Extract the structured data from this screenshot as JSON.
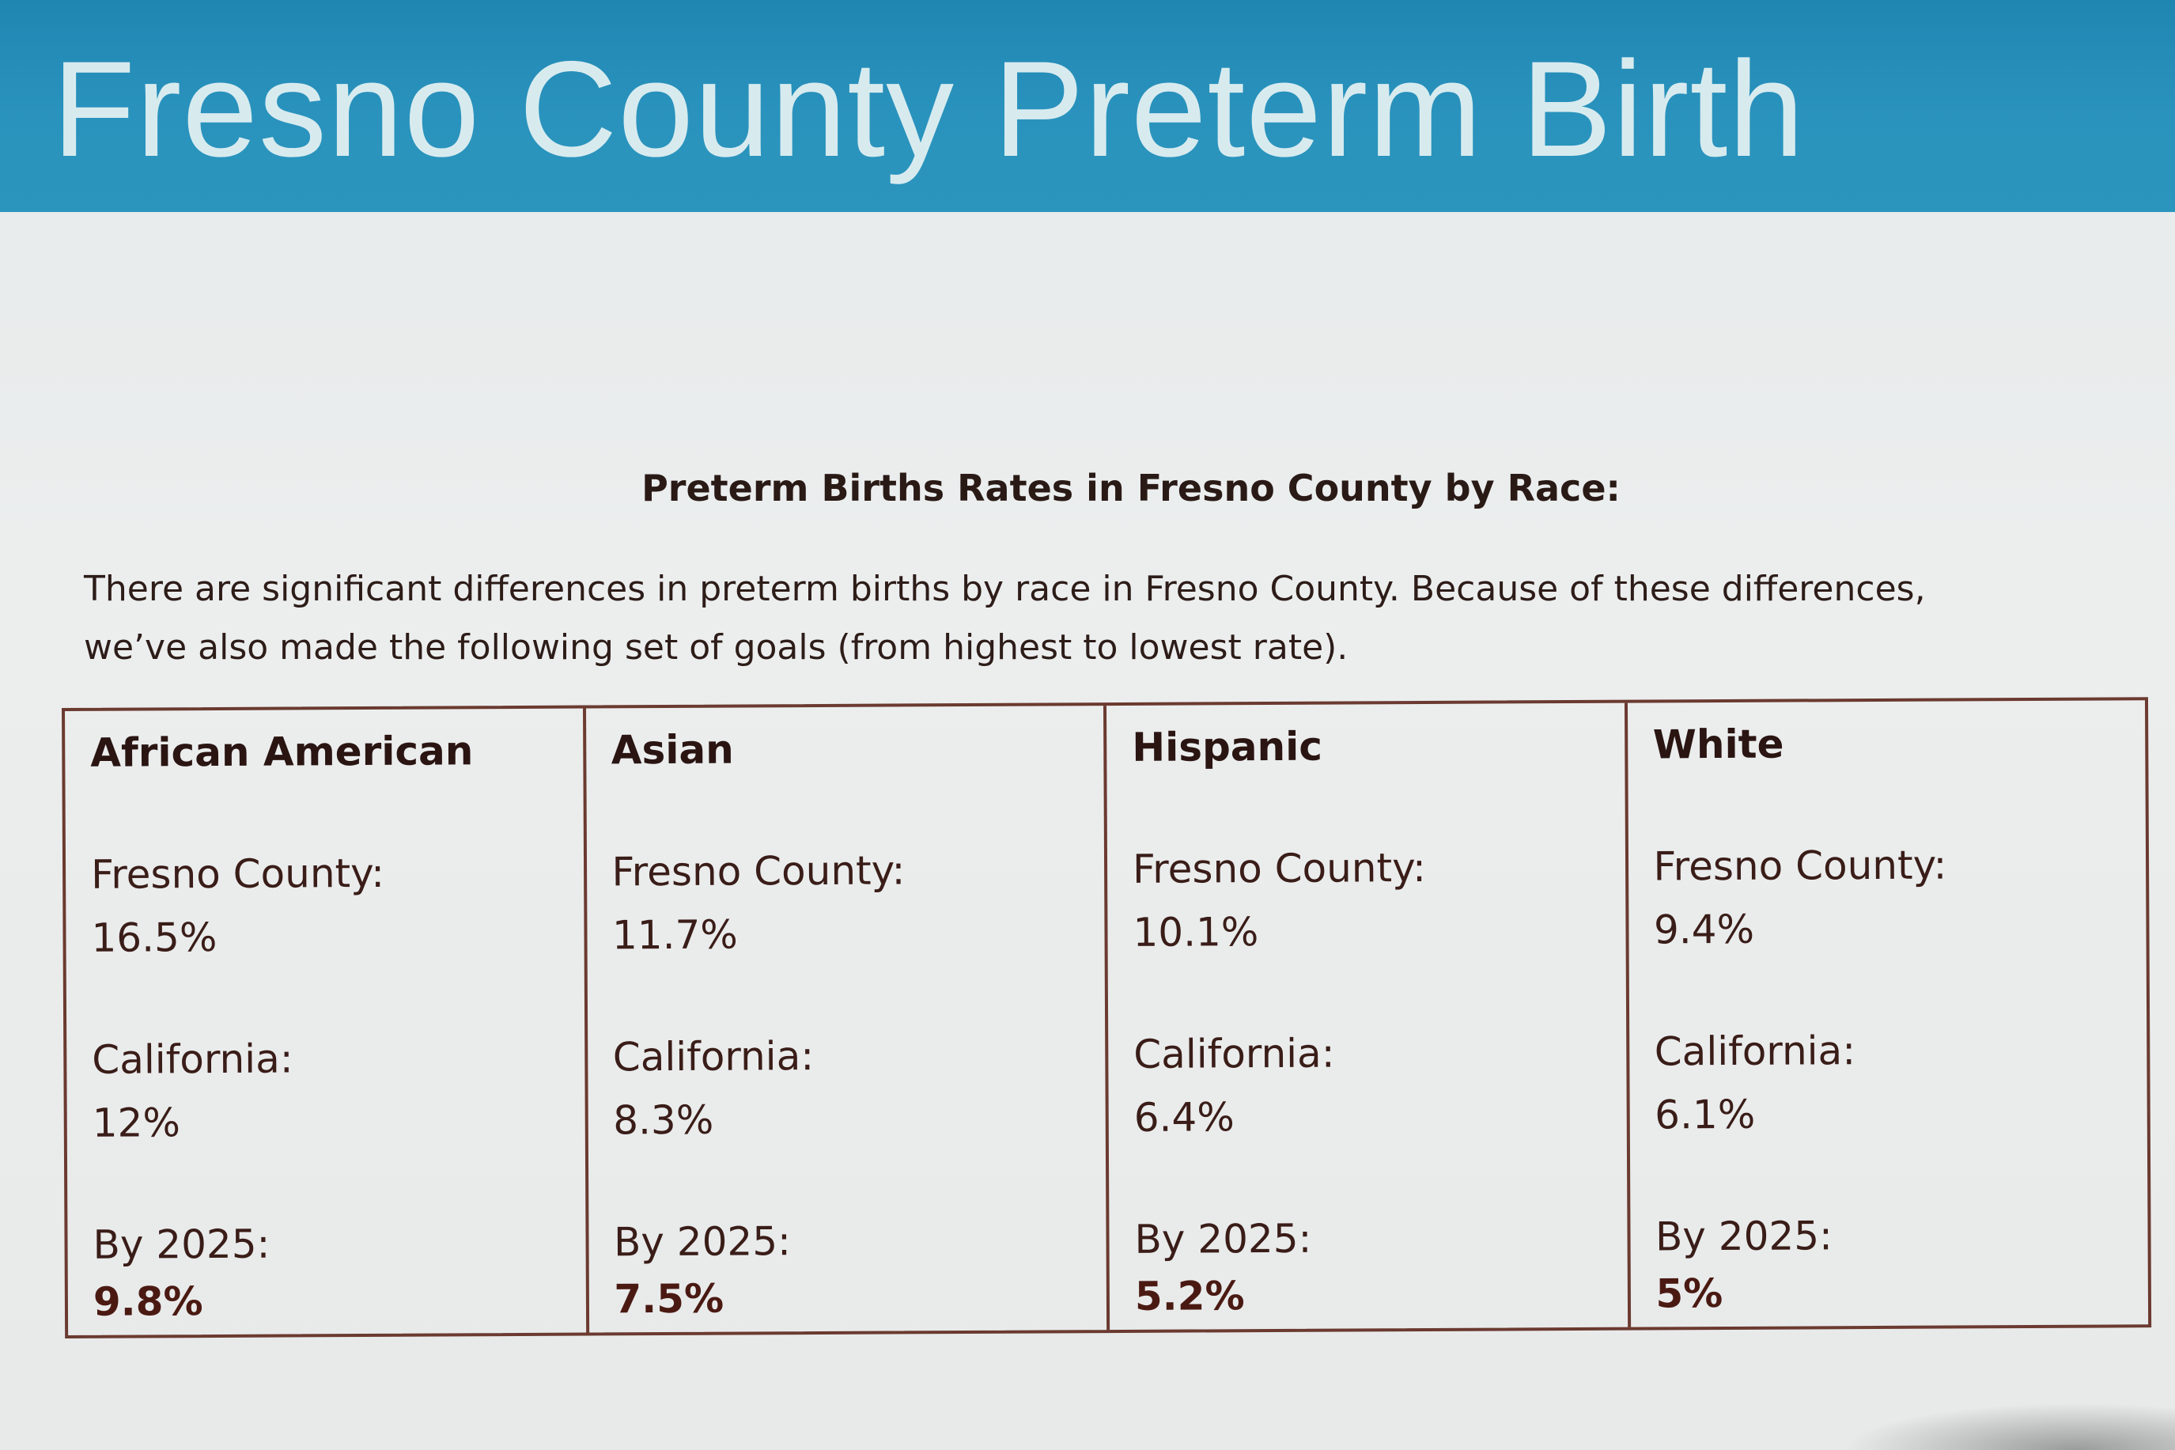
{
  "header": {
    "title": "Fresno County Preterm Birth"
  },
  "document": {
    "heading": "Preterm Births Rates in Fresno County by Race:",
    "intro": "There are significant differences in preterm births by race in Fresno County. Because of these differences, we’ve also made the following set of goals (from highest to lowest rate)."
  },
  "table": {
    "columns": [
      {
        "race": "African American",
        "fresno_label": "Fresno County:",
        "fresno_value": "16.5%",
        "california_label": "California:",
        "california_value": "12%",
        "goal_label": "By 2025:",
        "goal_value": "9.8%"
      },
      {
        "race": "Asian",
        "fresno_label": "Fresno County:",
        "fresno_value": "11.7%",
        "california_label": "California:",
        "california_value": "8.3%",
        "goal_label": "By 2025:",
        "goal_value": "7.5%"
      },
      {
        "race": "Hispanic",
        "fresno_label": "Fresno County:",
        "fresno_value": "10.1%",
        "california_label": "California:",
        "california_value": "6.4%",
        "goal_label": "By 2025:",
        "goal_value": "5.2%"
      },
      {
        "race": "White",
        "fresno_label": "Fresno County:",
        "fresno_value": "9.4%",
        "california_label": "California:",
        "california_value": "6.1%",
        "goal_label": "By 2025:",
        "goal_value": "5%"
      }
    ]
  },
  "colors": {
    "header_bg": "#2a93bd",
    "header_text": "#d7ebef",
    "table_border": "#6b3a30",
    "body_text": "#2d1c18"
  }
}
